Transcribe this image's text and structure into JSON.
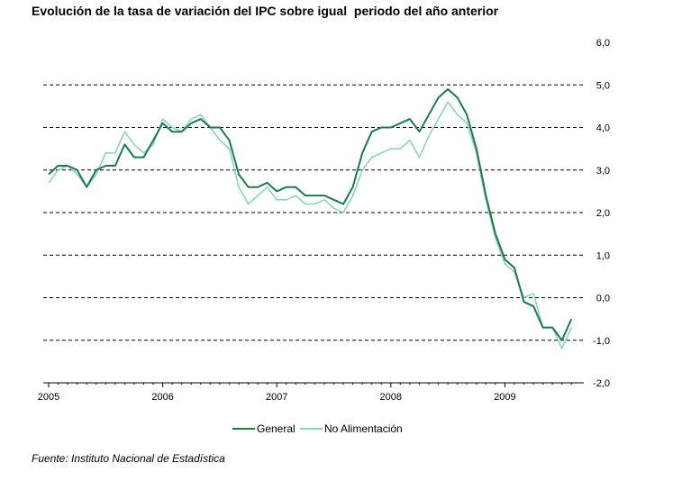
{
  "title": "Evolución de la tasa de variación del IPC sobre igual  periodo del año anterior",
  "source": "Fuente: Instituto Nacional de Estadística",
  "colors": {
    "general": "#1f7a4a",
    "no_alimentacion": "#8fd3b4",
    "grid": "#000000",
    "axis": "#000000"
  },
  "chart_data": {
    "type": "line",
    "title": "Evolución de la tasa de variación del IPC sobre igual  periodo del año anterior",
    "xlabel": "",
    "ylabel": "",
    "x_tick_labels": [
      "2005",
      "2006",
      "2007",
      "2008",
      "2009"
    ],
    "y_tick_labels": [
      "6,0",
      "5,0",
      "4,0",
      "3,0",
      "2,0",
      "1,0",
      "0,0",
      "-1,0",
      "-2,0"
    ],
    "ylim": [
      -2,
      6
    ],
    "y_axis_position": "right",
    "grid": "horizontal dashed",
    "legend_position": "bottom",
    "x": [
      "2005-01",
      "2005-02",
      "2005-03",
      "2005-04",
      "2005-05",
      "2005-06",
      "2005-07",
      "2005-08",
      "2005-09",
      "2005-10",
      "2005-11",
      "2005-12",
      "2006-01",
      "2006-02",
      "2006-03",
      "2006-04",
      "2006-05",
      "2006-06",
      "2006-07",
      "2006-08",
      "2006-09",
      "2006-10",
      "2006-11",
      "2006-12",
      "2007-01",
      "2007-02",
      "2007-03",
      "2007-04",
      "2007-05",
      "2007-06",
      "2007-07",
      "2007-08",
      "2007-09",
      "2007-10",
      "2007-11",
      "2007-12",
      "2008-01",
      "2008-02",
      "2008-03",
      "2008-04",
      "2008-05",
      "2008-06",
      "2008-07",
      "2008-08",
      "2008-09",
      "2008-10",
      "2008-11",
      "2008-12",
      "2009-01",
      "2009-02",
      "2009-03",
      "2009-04",
      "2009-05",
      "2009-06",
      "2009-07",
      "2009-08"
    ],
    "series": [
      {
        "name": "General",
        "values": [
          2.9,
          3.1,
          3.1,
          3.0,
          2.6,
          3.0,
          3.1,
          3.1,
          3.6,
          3.3,
          3.3,
          3.7,
          4.1,
          3.9,
          3.9,
          4.1,
          4.2,
          4.0,
          4.0,
          3.7,
          2.9,
          2.6,
          2.6,
          2.7,
          2.5,
          2.6,
          2.6,
          2.4,
          2.4,
          2.4,
          2.3,
          2.2,
          2.6,
          3.4,
          3.9,
          4.0,
          4.0,
          4.1,
          4.2,
          3.9,
          4.3,
          4.7,
          4.9,
          4.7,
          4.3,
          3.5,
          2.4,
          1.5,
          0.9,
          0.7,
          -0.1,
          -0.2,
          -0.7,
          -0.7,
          -1.0,
          -0.5
        ]
      },
      {
        "name": "No Alimentación",
        "values": [
          2.7,
          3.0,
          3.1,
          2.9,
          2.6,
          2.9,
          3.4,
          3.4,
          3.9,
          3.6,
          3.4,
          3.6,
          4.2,
          4.0,
          3.9,
          4.2,
          4.3,
          4.0,
          3.7,
          3.5,
          2.6,
          2.2,
          2.4,
          2.6,
          2.3,
          2.3,
          2.4,
          2.2,
          2.2,
          2.3,
          2.1,
          2.0,
          2.4,
          3.0,
          3.3,
          3.4,
          3.5,
          3.5,
          3.7,
          3.3,
          3.8,
          4.2,
          4.6,
          4.3,
          4.1,
          3.4,
          2.3,
          1.4,
          0.8,
          0.6,
          0.0,
          0.1,
          -0.7,
          -0.7,
          -1.2,
          -0.7
        ]
      }
    ]
  }
}
